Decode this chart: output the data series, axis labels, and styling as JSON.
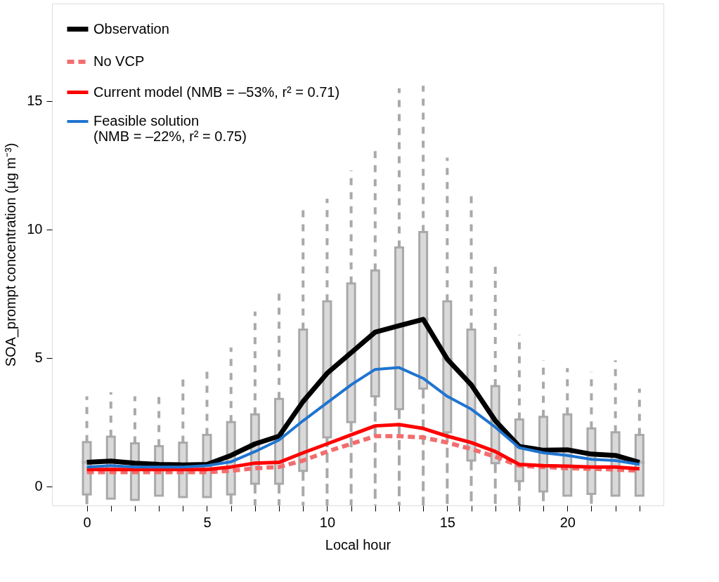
{
  "chart_data": {
    "type": "line",
    "xlabel": "Local hour",
    "ylabel": "SOA_prompt concentration (μg m⁻³)",
    "x": [
      0,
      1,
      2,
      3,
      4,
      5,
      6,
      7,
      8,
      9,
      10,
      11,
      12,
      13,
      14,
      15,
      16,
      17,
      18,
      19,
      20,
      21,
      22,
      23
    ],
    "xlim": [
      -1.45,
      24
    ],
    "ylim": [
      -0.75,
      18.8
    ],
    "xticks": [
      0,
      {
        "value": 1,
        "label": null
      },
      {
        "value": 2,
        "label": null
      },
      {
        "value": 3,
        "label": null
      },
      {
        "value": 4,
        "label": null
      },
      5,
      {
        "value": 6,
        "label": null
      },
      {
        "value": 7,
        "label": null
      },
      {
        "value": 8,
        "label": null
      },
      {
        "value": 9,
        "label": null
      },
      10,
      {
        "value": 11,
        "label": null
      },
      {
        "value": 12,
        "label": null
      },
      {
        "value": 13,
        "label": null
      },
      {
        "value": 14,
        "label": null
      },
      15,
      {
        "value": 16,
        "label": null
      },
      {
        "value": 17,
        "label": null
      },
      {
        "value": 18,
        "label": null
      },
      {
        "value": 19,
        "label": null
      },
      20,
      {
        "value": 21,
        "label": null
      },
      {
        "value": 22,
        "label": null
      },
      {
        "value": 23,
        "label": null
      }
    ],
    "yticks": [
      0,
      5,
      10,
      15
    ],
    "grid": false,
    "legend": "top left",
    "marker": "none",
    "series": [
      {
        "type": "box",
        "color": "#a9a9a9",
        "boxes": [
          {
            "low": -0.75,
            "q1": -0.32,
            "median": 0.93,
            "q3": 1.72,
            "high": 3.5
          },
          {
            "low": -0.48,
            "q1": -0.48,
            "median": 0.98,
            "q3": 1.93,
            "high": 3.66
          },
          {
            "low": -0.53,
            "q1": -0.53,
            "median": 0.9,
            "q3": 1.67,
            "high": 3.5
          },
          {
            "low": -0.37,
            "q1": -0.37,
            "median": 0.85,
            "q3": 1.56,
            "high": 3.66
          },
          {
            "low": -0.42,
            "q1": -0.42,
            "median": 0.83,
            "q3": 1.7,
            "high": 4.3
          },
          {
            "low": -0.42,
            "q1": -0.42,
            "median": 0.85,
            "q3": 2.0,
            "high": 4.6
          },
          {
            "low": -0.75,
            "q1": -0.32,
            "median": 1.2,
            "q3": 2.5,
            "high": 5.4
          },
          {
            "low": -0.75,
            "q1": 0.1,
            "median": 1.65,
            "q3": 2.8,
            "high": 6.8
          },
          {
            "low": -0.75,
            "q1": 0.1,
            "median": 1.95,
            "q3": 3.4,
            "high": 7.7
          },
          {
            "low": -0.75,
            "q1": 0.6,
            "median": 3.3,
            "q3": 6.1,
            "high": 10.9
          },
          {
            "low": -0.75,
            "q1": 1.9,
            "median": 4.4,
            "q3": 7.2,
            "high": 11.2
          },
          {
            "low": -0.75,
            "q1": 2.5,
            "median": 5.2,
            "q3": 7.9,
            "high": 12.3
          },
          {
            "low": -0.75,
            "q1": 3.5,
            "median": 6.0,
            "q3": 8.4,
            "high": 13.3
          },
          {
            "low": -0.75,
            "q1": 3.0,
            "median": 6.25,
            "q3": 9.3,
            "high": 15.5
          },
          {
            "low": -0.75,
            "q1": 3.8,
            "median": 6.5,
            "q3": 9.9,
            "high": 15.6
          },
          {
            "low": -0.75,
            "q1": 2.1,
            "median": 4.95,
            "q3": 7.2,
            "high": 12.8
          },
          {
            "low": -0.75,
            "q1": 1.0,
            "median": 3.95,
            "q3": 6.1,
            "high": 11.3
          },
          {
            "low": -0.75,
            "q1": 0.9,
            "median": 2.55,
            "q3": 3.9,
            "high": 8.6
          },
          {
            "low": -0.75,
            "q1": 0.2,
            "median": 1.55,
            "q3": 2.6,
            "high": 5.9
          },
          {
            "low": -0.75,
            "q1": -0.2,
            "median": 1.4,
            "q3": 2.7,
            "high": 4.9
          },
          {
            "low": -0.37,
            "q1": -0.37,
            "median": 1.42,
            "q3": 2.8,
            "high": 4.6
          },
          {
            "low": -0.75,
            "q1": -0.3,
            "median": 1.25,
            "q3": 2.25,
            "high": 4.45
          },
          {
            "low": -0.37,
            "q1": -0.37,
            "median": 1.2,
            "q3": 2.1,
            "high": 4.9
          },
          {
            "low": -0.37,
            "q1": -0.37,
            "median": 0.93,
            "q3": 2.0,
            "high": 3.8
          }
        ]
      },
      {
        "name": "Observation",
        "type": "line",
        "color": "#000000",
        "line_style": "solid",
        "values": [
          0.93,
          0.98,
          0.9,
          0.85,
          0.83,
          0.85,
          1.2,
          1.65,
          1.95,
          3.3,
          4.4,
          5.2,
          6.0,
          6.25,
          6.5,
          4.95,
          3.95,
          2.55,
          1.55,
          1.4,
          1.42,
          1.25,
          1.2,
          0.93
        ]
      },
      {
        "name": "No VCP",
        "type": "line",
        "color": "#f26d6d",
        "line_style": "dashed",
        "values": [
          0.55,
          0.55,
          0.55,
          0.55,
          0.55,
          0.55,
          0.6,
          0.7,
          0.75,
          1.0,
          1.35,
          1.65,
          1.95,
          1.95,
          1.9,
          1.7,
          1.45,
          1.15,
          0.8,
          0.75,
          0.7,
          0.68,
          0.65,
          0.6
        ]
      },
      {
        "name": "Current model (NMB = –53%, r² = 0.71)",
        "type": "line",
        "color": "#ff0000",
        "line_style": "solid",
        "values": [
          0.65,
          0.65,
          0.65,
          0.65,
          0.65,
          0.65,
          0.75,
          0.9,
          0.93,
          1.3,
          1.65,
          2.0,
          2.35,
          2.4,
          2.25,
          1.95,
          1.7,
          1.35,
          0.85,
          0.8,
          0.78,
          0.75,
          0.75,
          0.68
        ]
      },
      {
        "name": "Feasible solution\n(NMB = –22%, r² = 0.75)",
        "type": "line",
        "color": "#1f74d0",
        "line_style": "solid",
        "values": [
          0.75,
          0.8,
          0.75,
          0.75,
          0.75,
          0.8,
          0.95,
          1.35,
          1.8,
          2.55,
          3.25,
          3.95,
          4.55,
          4.62,
          4.2,
          3.5,
          3.0,
          2.3,
          1.5,
          1.3,
          1.2,
          1.05,
          1.0,
          0.85
        ]
      }
    ]
  }
}
